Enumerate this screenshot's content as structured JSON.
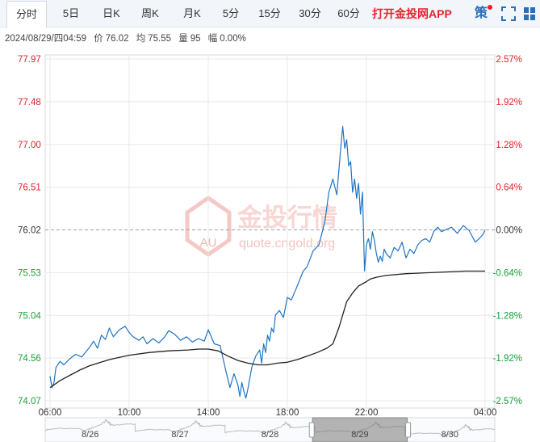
{
  "tabs": [
    {
      "label": "分时",
      "active": true
    },
    {
      "label": "5日"
    },
    {
      "label": "日K"
    },
    {
      "label": "周K"
    },
    {
      "label": "月K"
    },
    {
      "label": "5分"
    },
    {
      "label": "15分"
    },
    {
      "label": "30分"
    },
    {
      "label": "60分"
    }
  ],
  "app_link": "打开金投网APP",
  "strategy_label": "策",
  "info": {
    "datetime": "2024/08/29/四04:59",
    "price_label": "价",
    "price": "76.02",
    "avg_label": "均",
    "avg": "75.55",
    "volume_label": "量",
    "volume": "95",
    "change_label": "幅",
    "change": "0.00%"
  },
  "watermark": {
    "logo": "AU",
    "text": "金投行情",
    "url": "quote.cngold.org"
  },
  "colors": {
    "price_line": "#1f74c4",
    "avg_line": "#222222",
    "up": "#e6212a",
    "down": "#1a9e3a",
    "grid": "#e8e8e8",
    "ref_line": "#9aa0a6"
  },
  "chart_data": {
    "type": "line",
    "x_ticks": [
      "06:00",
      "10:00",
      "14:00",
      "18:00",
      "22:00",
      "04:00"
    ],
    "x_tick_hours": [
      0,
      4,
      8,
      12,
      16,
      22
    ],
    "x_range_hours": [
      0,
      22
    ],
    "left_axis_ticks": [
      "77.97",
      "77.48",
      "77.00",
      "76.51",
      "76.02",
      "75.53",
      "75.04",
      "74.56",
      "74.07"
    ],
    "right_axis_ticks": [
      "2.57%",
      "1.92%",
      "1.28%",
      "0.64%",
      "0.00%",
      "-0.64%",
      "-1.28%",
      "-1.92%",
      "-2.57%"
    ],
    "ylim": [
      74.07,
      77.97
    ],
    "reference_price": 76.02,
    "series": [
      {
        "role": "price",
        "x": [
          0,
          0.1,
          0.2,
          0.3,
          0.5,
          0.7,
          1,
          1.3,
          1.6,
          2,
          2.2,
          2.4,
          2.6,
          2.8,
          3,
          3.2,
          3.5,
          3.8,
          4,
          4.2,
          4.5,
          4.7,
          4.9,
          5.2,
          5.5,
          5.8,
          6,
          6.3,
          6.6,
          6.9,
          7.2,
          7.5,
          7.8,
          8,
          8.3,
          8.6,
          8.9,
          9.1,
          9.3,
          9.5,
          9.6,
          9.7,
          9.8,
          9.9,
          10,
          10.2,
          10.4,
          10.6,
          10.7,
          10.8,
          10.9,
          11,
          11.1,
          11.2,
          11.3,
          11.4,
          11.6,
          11.8,
          12,
          12.2,
          12.5,
          12.8,
          13,
          13.3,
          13.6,
          13.9,
          14.1,
          14.3,
          14.5,
          14.7,
          14.8,
          14.9,
          15,
          15.1,
          15.2,
          15.3,
          15.4,
          15.5,
          15.6,
          15.7,
          15.8,
          15.9,
          16,
          16.1,
          16.2,
          16.3,
          16.4,
          16.5,
          16.6,
          16.7,
          16.8,
          16.9,
          17,
          17.2,
          17.4,
          17.6,
          17.8,
          18,
          18.2,
          18.4,
          18.6,
          18.8,
          19,
          19.2,
          19.4,
          19.6,
          19.8,
          20,
          20.3,
          20.6,
          20.9,
          21.2,
          21.5,
          21.7,
          21.9,
          22
        ],
        "y": [
          74.35,
          74.22,
          74.28,
          74.45,
          74.52,
          74.48,
          74.55,
          74.6,
          74.57,
          74.68,
          74.75,
          74.67,
          74.82,
          74.77,
          74.9,
          74.8,
          74.88,
          74.92,
          74.85,
          74.8,
          74.76,
          74.8,
          74.72,
          74.78,
          74.73,
          74.8,
          74.87,
          74.83,
          74.76,
          74.8,
          74.74,
          74.78,
          74.75,
          74.88,
          74.72,
          74.7,
          74.4,
          74.22,
          74.38,
          74.25,
          74.12,
          74.28,
          74.18,
          74.1,
          74.2,
          74.45,
          74.58,
          74.65,
          74.5,
          74.72,
          74.62,
          74.82,
          74.75,
          74.9,
          74.85,
          75.05,
          75.1,
          75.02,
          75.25,
          75.22,
          75.38,
          75.55,
          75.6,
          75.78,
          75.85,
          76.12,
          76.45,
          76.6,
          76.42,
          76.95,
          77.2,
          76.95,
          77.05,
          76.75,
          76.8,
          76.45,
          76.6,
          76.38,
          76.55,
          76.2,
          76.45,
          75.55,
          75.85,
          75.92,
          75.8,
          76.0,
          75.9,
          75.75,
          75.65,
          75.72,
          75.66,
          75.8,
          75.75,
          75.7,
          75.82,
          75.78,
          75.88,
          75.7,
          75.8,
          75.75,
          75.85,
          75.9,
          75.92,
          75.88,
          76.0,
          76.05,
          76.0,
          76.02,
          76.05,
          75.98,
          76.07,
          76.01,
          75.88,
          75.92,
          75.97,
          76.02
        ]
      },
      {
        "role": "average",
        "x": [
          0,
          0.5,
          1,
          1.5,
          2,
          3,
          4,
          5,
          6,
          7,
          7.5,
          8,
          8.5,
          9,
          9.5,
          10,
          10.5,
          11,
          11.5,
          12,
          12.5,
          13,
          13.5,
          14,
          14.3,
          14.6,
          15,
          15.3,
          15.6,
          16,
          16.2,
          16.5,
          17,
          18,
          19,
          20,
          21,
          22
        ],
        "y": [
          74.22,
          74.3,
          74.36,
          74.42,
          74.47,
          74.54,
          74.59,
          74.62,
          74.64,
          74.65,
          74.66,
          74.66,
          74.64,
          74.58,
          74.53,
          74.5,
          74.48,
          74.48,
          74.5,
          74.51,
          74.54,
          74.58,
          74.62,
          74.67,
          74.72,
          74.9,
          75.2,
          75.3,
          75.38,
          75.43,
          75.46,
          75.48,
          75.5,
          75.52,
          75.53,
          75.54,
          75.55,
          75.55
        ]
      }
    ]
  },
  "overview": {
    "dates": [
      "8/26",
      "8/27",
      "8/28",
      "8/29",
      "8/30"
    ],
    "selected_index": 3
  }
}
